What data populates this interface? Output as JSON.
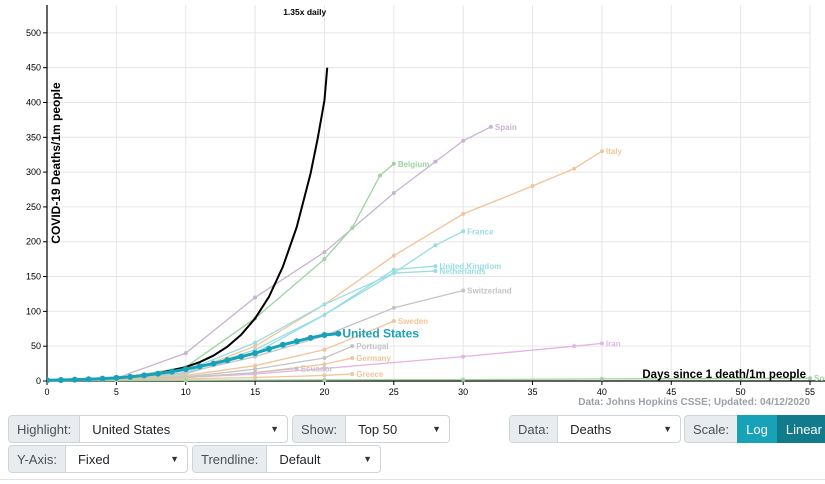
{
  "chart_data": {
    "type": "line",
    "xlabel": "Days since 1 death/1m people",
    "ylabel": "COVID-19 Deaths/1m people",
    "xlim": [
      0,
      55
    ],
    "ylim": [
      0,
      540
    ],
    "xticks": [
      0,
      5,
      10,
      15,
      20,
      25,
      30,
      35,
      40,
      45,
      50,
      55
    ],
    "yticks": [
      0,
      50,
      100,
      150,
      200,
      250,
      300,
      350,
      400,
      450,
      500
    ],
    "grid": true,
    "source_note": "Data: Johns Hopkins CSSE; Updated: 04/12/2020",
    "trendline": {
      "name": "1.35x daily",
      "color": "#000000",
      "x": [
        0,
        2,
        4,
        6,
        8,
        10,
        11,
        12,
        13,
        14,
        15,
        16,
        17,
        18,
        19,
        19.5,
        20,
        20.2
      ],
      "y": [
        1,
        1.8,
        3.3,
        6.1,
        11,
        20,
        27,
        36.5,
        49.3,
        66.5,
        89.8,
        121,
        164,
        221,
        298,
        347,
        403,
        450
      ]
    },
    "series": [
      {
        "name": "Spain",
        "color": "#c8b4d2",
        "x": [
          0,
          5,
          10,
          15,
          20,
          25,
          28,
          30,
          32
        ],
        "y": [
          1,
          4,
          40,
          120,
          185,
          270,
          315,
          345,
          365
        ]
      },
      {
        "name": "Italy",
        "color": "#f2c49a",
        "x": [
          0,
          5,
          10,
          15,
          20,
          25,
          30,
          35,
          38,
          40
        ],
        "y": [
          1,
          2,
          12,
          50,
          110,
          180,
          240,
          280,
          305,
          330
        ]
      },
      {
        "name": "Belgium",
        "color": "#9fd49f",
        "x": [
          0,
          5,
          10,
          15,
          20,
          22,
          24,
          25
        ],
        "y": [
          1,
          3,
          20,
          90,
          175,
          220,
          295,
          312
        ]
      },
      {
        "name": "France",
        "color": "#99dde3",
        "x": [
          0,
          5,
          10,
          15,
          20,
          25,
          28,
          30
        ],
        "y": [
          1,
          2,
          10,
          40,
          95,
          155,
          195,
          215
        ]
      },
      {
        "name": "United Kingdom",
        "color": "#99dde3",
        "x": [
          0,
          5,
          10,
          15,
          20,
          25,
          28
        ],
        "y": [
          1,
          2,
          12,
          45,
          95,
          160,
          165
        ]
      },
      {
        "name": "Netherlands",
        "color": "#99dde3",
        "x": [
          0,
          5,
          10,
          15,
          20,
          25,
          28
        ],
        "y": [
          1,
          3,
          15,
          55,
          110,
          155,
          158
        ]
      },
      {
        "name": "Switzerland",
        "color": "#c4c4c4",
        "x": [
          0,
          5,
          10,
          15,
          20,
          25,
          30
        ],
        "y": [
          1,
          3,
          12,
          35,
          65,
          105,
          130
        ]
      },
      {
        "name": "Sweden",
        "color": "#f2c49a",
        "x": [
          0,
          5,
          10,
          15,
          20,
          25
        ],
        "y": [
          1,
          2,
          8,
          22,
          45,
          86
        ]
      },
      {
        "name": "Portugal",
        "color": "#c4c4c4",
        "x": [
          0,
          5,
          10,
          15,
          20,
          22
        ],
        "y": [
          1,
          2,
          6,
          17,
          33,
          50
        ]
      },
      {
        "name": "Iran",
        "color": "#e6b3e6",
        "x": [
          0,
          5,
          10,
          15,
          20,
          30,
          38,
          40
        ],
        "y": [
          1,
          2,
          5,
          10,
          18,
          35,
          50,
          54
        ]
      },
      {
        "name": "Germany",
        "color": "#f2c49a",
        "x": [
          0,
          5,
          10,
          15,
          20,
          22
        ],
        "y": [
          1,
          2,
          5,
          12,
          24,
          33
        ]
      },
      {
        "name": "Ecuador",
        "color": "#c4c4c4",
        "x": [
          0,
          5,
          10,
          15,
          18
        ],
        "y": [
          1,
          2,
          5,
          12,
          18
        ]
      },
      {
        "name": "Greece",
        "color": "#f2c49a",
        "x": [
          0,
          5,
          10,
          15,
          20,
          22
        ],
        "y": [
          1,
          1.5,
          3,
          5,
          8,
          10
        ]
      },
      {
        "name": "South Korea",
        "color": "#9fd49f",
        "x": [
          0,
          10,
          20,
          30,
          40,
          50,
          55
        ],
        "y": [
          0.5,
          1,
          1.5,
          2,
          3,
          3.5,
          4
        ]
      },
      {
        "name": "United States",
        "color": "#17a2b8",
        "highlight": true,
        "x": [
          0,
          1,
          2,
          3,
          4,
          5,
          6,
          7,
          8,
          9,
          10,
          11,
          12,
          13,
          14,
          15,
          16,
          17,
          18,
          19,
          20,
          21
        ],
        "y": [
          1,
          1.4,
          2,
          2.6,
          3.4,
          4.5,
          6,
          8,
          10.5,
          13.5,
          17,
          21,
          25,
          30,
          35,
          40,
          46,
          52,
          57,
          62,
          66,
          68
        ]
      }
    ],
    "labels": {
      "Spain": "Spain",
      "Italy": "Italy",
      "Belgium": "Belgium",
      "France": "France",
      "United Kingdom": "United Kingdom",
      "Netherlands": "Netherlands",
      "Switzerland": "Switzerland",
      "Sweden": "Sweden",
      "Portugal": "Portugal",
      "Iran": "Iran",
      "Germany": "Germany",
      "Ecuador": "Ecuador",
      "Greece": "Greece",
      "South Korea": "South Korea",
      "United States": "United States"
    }
  },
  "controls": {
    "highlight_label": "Highlight:",
    "highlight_value": "United States",
    "show_label": "Show:",
    "show_value": "Top 50",
    "data_label": "Data:",
    "data_value": "Deaths",
    "scale_label": "Scale:",
    "scale_log": "Log",
    "scale_linear": "Linear",
    "yaxis_label": "Y-Axis:",
    "yaxis_value": "Fixed",
    "trendline_label": "Trendline:",
    "trendline_value": "Default"
  }
}
